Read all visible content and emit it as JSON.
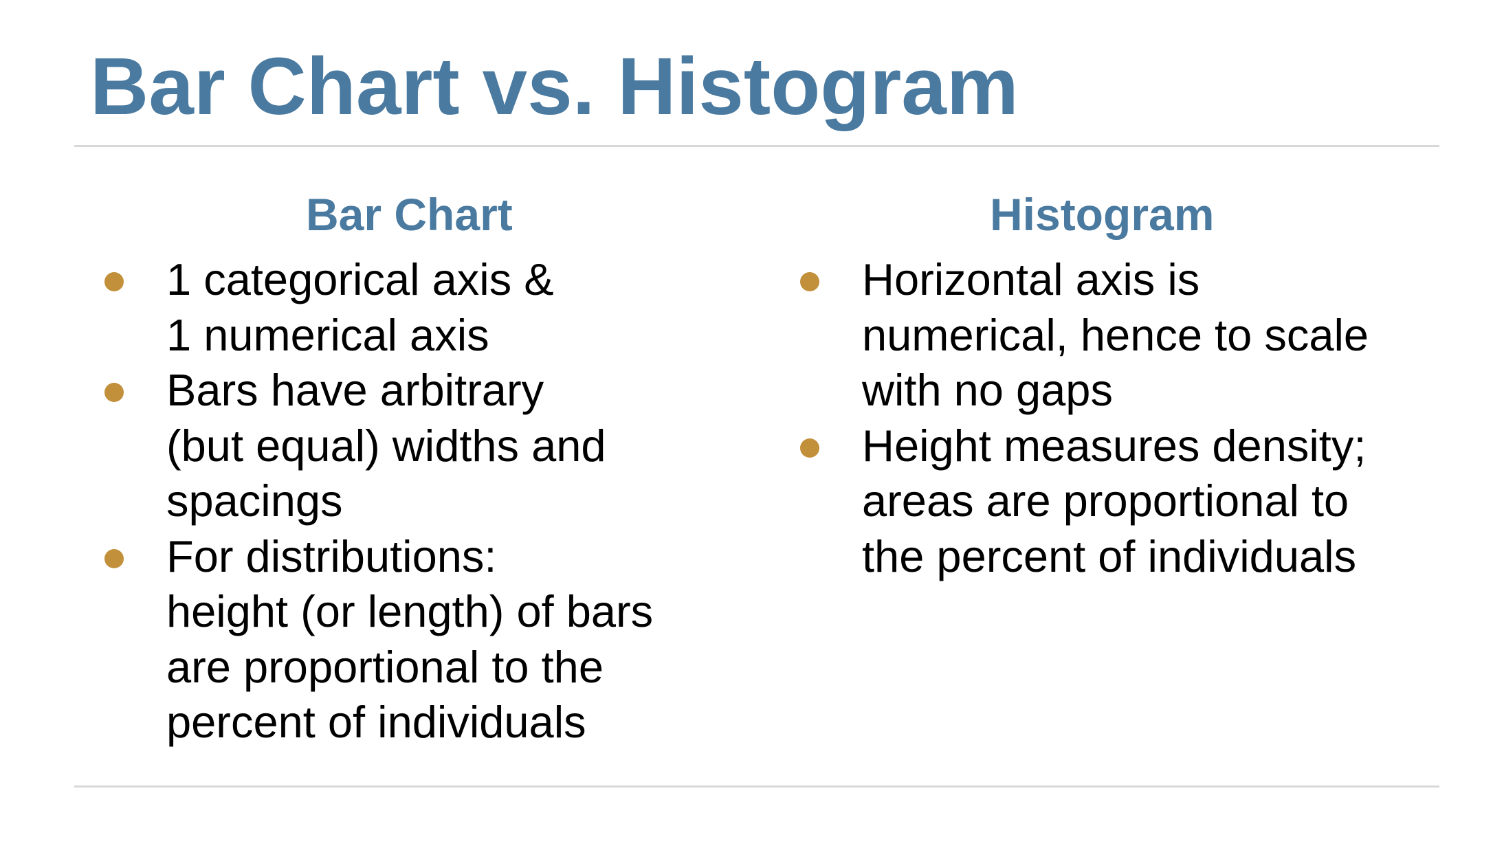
{
  "slide": {
    "title": "Bar Chart vs. Histogram",
    "accent_color": "#4a7aa0",
    "bullet_color": "#c28f3a"
  },
  "left_column": {
    "heading": "Bar Chart",
    "bullets": [
      {
        "lines": [
          "1 categorical axis &",
          "1 numerical axis"
        ]
      },
      {
        "lines": [
          "Bars have arbitrary",
          "(but equal) widths and",
          "spacings"
        ]
      },
      {
        "lines": [
          "For distributions:",
          "height (or length) of bars",
          "are proportional to the",
          "percent of individuals"
        ]
      }
    ]
  },
  "right_column": {
    "heading": "Histogram",
    "bullets": [
      {
        "lines": [
          "Horizontal axis is",
          "numerical, hence to scale",
          "with no gaps"
        ]
      },
      {
        "lines": [
          "Height measures density;",
          "areas are proportional to",
          "the percent of individuals"
        ]
      }
    ]
  }
}
